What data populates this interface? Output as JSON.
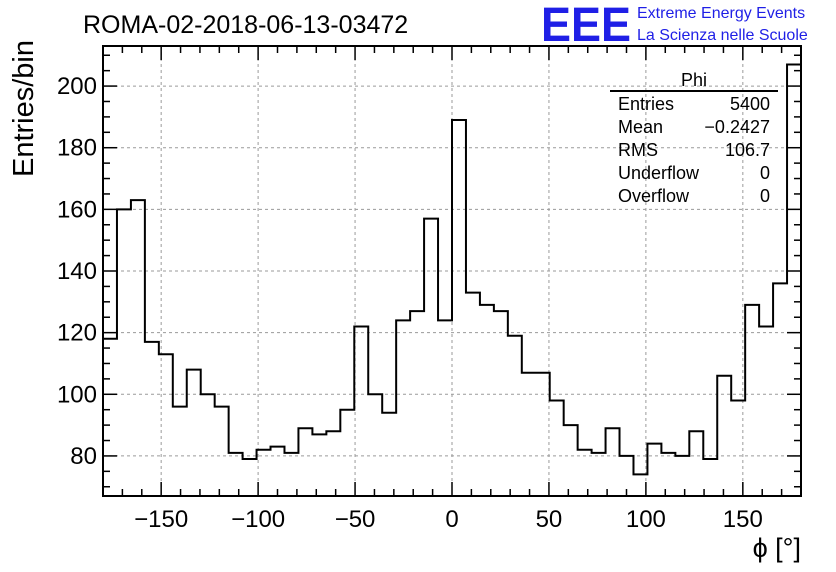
{
  "chart_data": {
    "type": "histogram",
    "title": "ROMA-02-2018-06-13-03472",
    "xlabel": "ϕ [°]",
    "ylabel": "Entries/bin",
    "xlim": [
      -180,
      180
    ],
    "ylim": [
      67,
      213
    ],
    "grid": true,
    "bin_width": 7.2,
    "bin_edges_start": -180,
    "x_ticks": [
      -150,
      -100,
      -50,
      0,
      50,
      100,
      150
    ],
    "x_tick_labels": [
      "−150",
      "−100",
      "−50",
      "0",
      "50",
      "100",
      "150"
    ],
    "y_ticks": [
      80,
      100,
      120,
      140,
      160,
      180,
      200
    ],
    "y_tick_labels": [
      "80",
      "100",
      "120",
      "140",
      "160",
      "180",
      "200"
    ],
    "values": [
      118,
      160,
      163,
      117,
      113,
      96,
      108,
      100,
      96,
      81,
      79,
      82,
      83,
      81,
      89,
      87,
      88,
      95,
      122,
      100,
      94,
      124,
      127,
      157,
      124,
      189,
      133,
      129,
      127,
      119,
      107,
      107,
      98,
      90,
      82,
      81,
      89,
      80,
      74,
      84,
      81,
      80,
      88,
      79,
      106,
      98,
      129,
      122,
      136,
      207
    ],
    "stats": {
      "name": "Phi",
      "rows": [
        {
          "label": "Entries",
          "value": "5400"
        },
        {
          "label": "Mean",
          "value": "−0.2427"
        },
        {
          "label": "RMS",
          "value": "106.7"
        },
        {
          "label": "Underflow",
          "value": "0"
        },
        {
          "label": "Overflow",
          "value": "0"
        }
      ]
    }
  },
  "logo": {
    "mark": "EEE",
    "line1": "Extreme Energy Events",
    "line2": "La Scienza nelle Scuole",
    "color": "#1f1fe6"
  }
}
